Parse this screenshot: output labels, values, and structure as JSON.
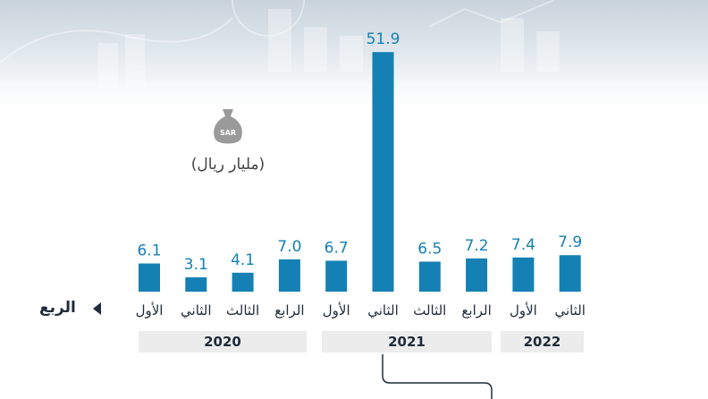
{
  "unit_label": "(مليار ريال)",
  "currency_icon": {
    "name": "money-bag-icon",
    "text": "SAR"
  },
  "axis_label": "الربع",
  "colors": {
    "bar": "#1580b3",
    "value": "#1580b3",
    "text": "#1f2b3a",
    "year_box": "#ececec"
  },
  "chart_data": {
    "type": "bar",
    "categories": [
      "الأول",
      "الثاني",
      "الثالث",
      "الرابع",
      "الأول",
      "الثاني",
      "الثالث",
      "الرابع",
      "الأول",
      "الثاني"
    ],
    "values": [
      6.1,
      3.1,
      4.1,
      7.0,
      6.7,
      51.9,
      6.5,
      7.2,
      7.4,
      7.9
    ],
    "value_labels": [
      "6.1",
      "3.1",
      "4.1",
      "7.0",
      "6.7",
      "51.9",
      "6.5",
      "7.2",
      "7.4",
      "7.9"
    ],
    "groups": [
      {
        "label": "2020",
        "indices": [
          0,
          1,
          2,
          3
        ]
      },
      {
        "label": "2021",
        "indices": [
          4,
          5,
          6,
          7
        ]
      },
      {
        "label": "2022",
        "indices": [
          8,
          9
        ]
      }
    ],
    "title": "",
    "xlabel": "الربع",
    "ylabel": "",
    "grid": false
  }
}
